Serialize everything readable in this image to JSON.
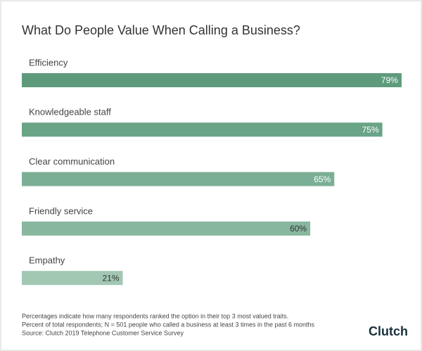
{
  "chart_data": {
    "type": "bar",
    "orientation": "horizontal",
    "title": "What Do People Value When Calling a Business?",
    "categories": [
      "Efficiency",
      "Knowledgeable staff",
      "Clear communication",
      "Friendly service",
      "Empathy"
    ],
    "values": [
      79,
      75,
      65,
      60,
      21
    ],
    "value_labels": [
      "79%",
      "75%",
      "65%",
      "60%",
      "21%"
    ],
    "colors": [
      "#5e9b7c",
      "#6aa487",
      "#7baf95",
      "#88b79f",
      "#a2c8b4"
    ],
    "label_colors": [
      "#ffffff",
      "#ffffff",
      "#ffffff",
      "#333333",
      "#333333"
    ],
    "notes": [
      "Percentages indicate how many respondents ranked the option in their top 3 most valued traits.",
      "Percent of total respondents; N = 501 people who called a business at least 3 times in the past 6 months",
      "Source: Clutch 2019 Telephone Customer Service Survey"
    ],
    "brand": "Clutch"
  }
}
